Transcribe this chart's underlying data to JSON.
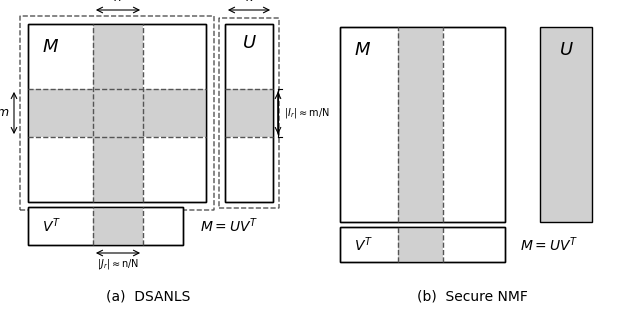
{
  "fig_width": 6.4,
  "fig_height": 3.2,
  "dpi": 100,
  "bg_color": "#ffffff",
  "gray_fill": "#d0d0d0",
  "white_fill": "#ffffff",
  "border_color": "#000000",
  "dashed_color": "#555555",
  "panel_a_label": "(a)  DSANLS",
  "panel_b_label": "(b)  Secure NMF",
  "M_label": "$M$",
  "U_label": "$U$",
  "VT_label": "$V^T$",
  "eq_label": "$M = UV^T$",
  "m_label": "m",
  "n_label": "n",
  "k_label": "k",
  "Ir_label": "$|I_r|{\\approx}$m/N",
  "Jr_label": "$|J_r|{\\approx}$n/N"
}
